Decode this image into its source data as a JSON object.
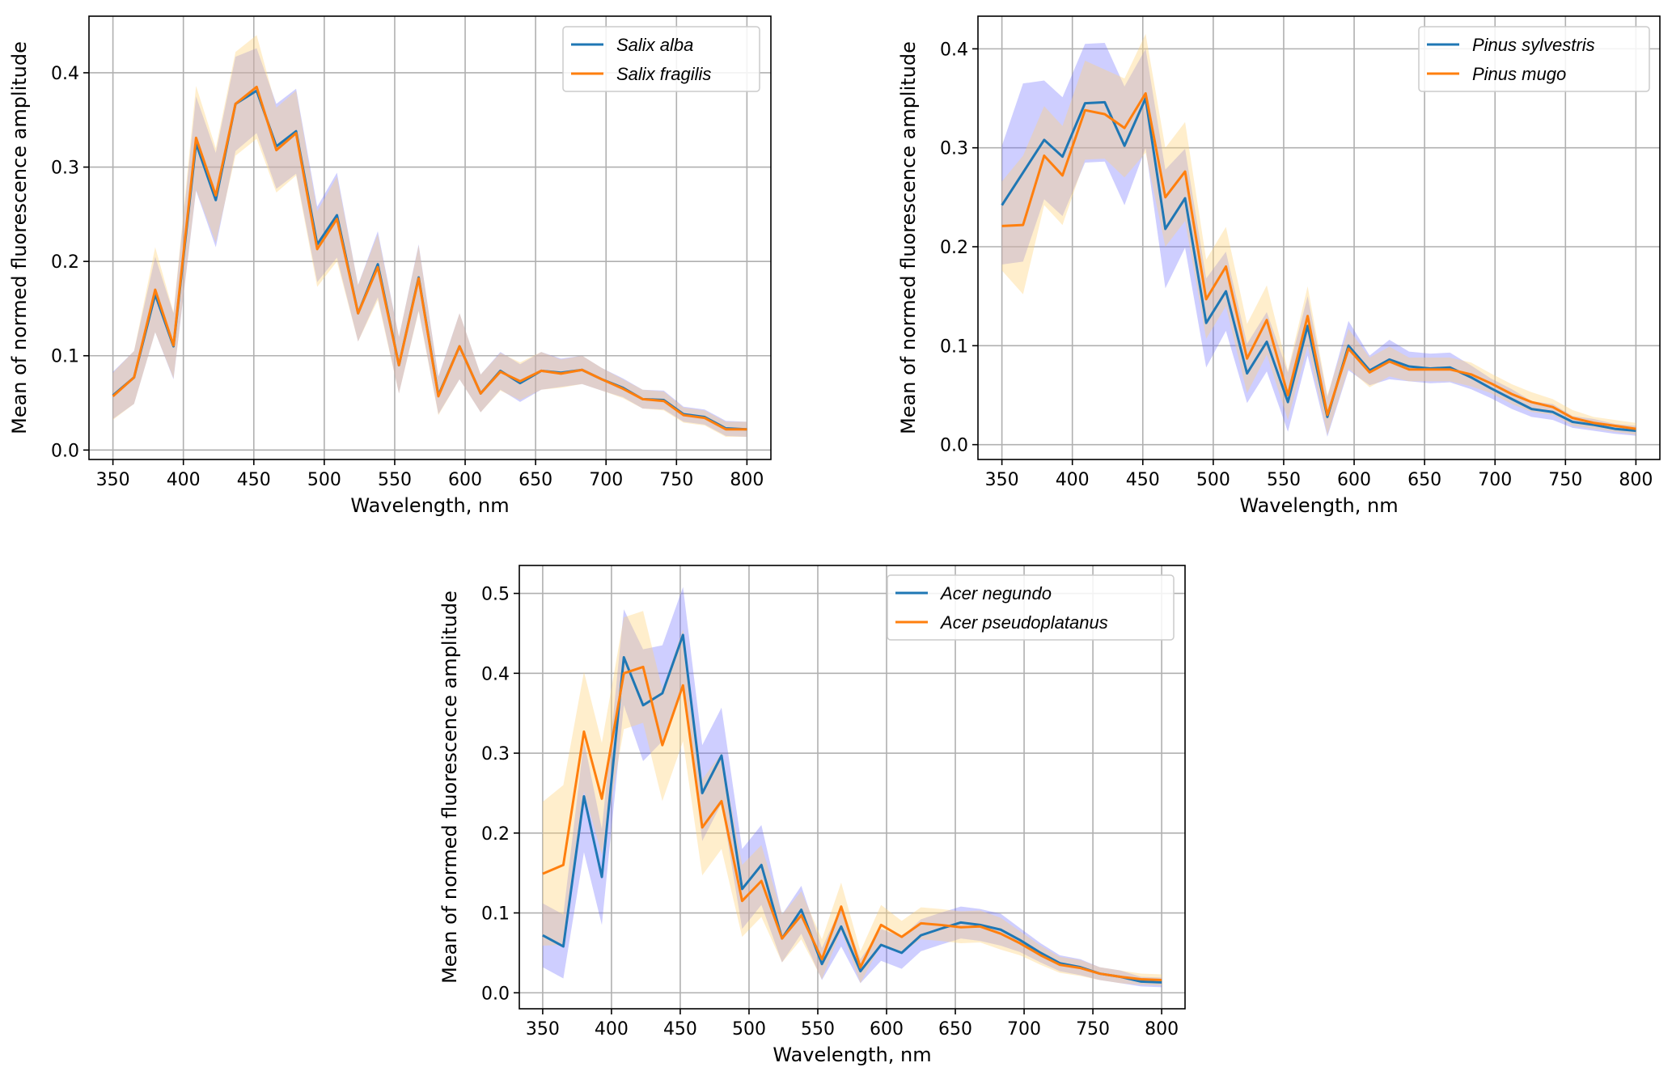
{
  "colors": {
    "series1": "#1f77b4",
    "series2": "#ff7f0e",
    "band1": "#6b6bff",
    "band2": "#ffd27a",
    "grid": "#b0b0b0"
  },
  "chart_data": [
    {
      "type": "line",
      "xlabel": "Wavelength, nm",
      "ylabel": "Mean of normed fluorescence amplitude",
      "xlim": [
        333,
        817
      ],
      "ylim": [
        -0.01,
        0.46
      ],
      "xticks": [
        350,
        400,
        450,
        500,
        550,
        600,
        650,
        700,
        750,
        800
      ],
      "yticks": [
        0.0,
        0.1,
        0.2,
        0.3,
        0.4
      ],
      "ytick_labels": [
        "0.0",
        "0.1",
        "0.2",
        "0.3",
        "0.4"
      ],
      "grid": true,
      "legend_position": "top-right",
      "x": [
        350,
        365,
        380,
        393,
        409,
        423,
        437,
        452,
        466,
        480,
        495,
        509,
        524,
        538,
        553,
        567,
        581,
        596,
        611,
        625,
        639,
        654,
        668,
        683,
        697,
        712,
        726,
        741,
        755,
        770,
        785,
        800
      ],
      "series": [
        {
          "name": "Salix alba",
          "values": [
            0.058,
            0.077,
            0.165,
            0.11,
            0.325,
            0.265,
            0.367,
            0.381,
            0.322,
            0.338,
            0.218,
            0.249,
            0.145,
            0.197,
            0.09,
            0.183,
            0.058,
            0.11,
            0.06,
            0.084,
            0.071,
            0.084,
            0.082,
            0.085,
            0.075,
            0.066,
            0.054,
            0.053,
            0.038,
            0.035,
            0.023,
            0.022
          ],
          "spread": [
            0.025,
            0.028,
            0.04,
            0.035,
            0.05,
            0.05,
            0.05,
            0.045,
            0.045,
            0.045,
            0.04,
            0.045,
            0.03,
            0.035,
            0.03,
            0.035,
            0.02,
            0.035,
            0.02,
            0.02,
            0.02,
            0.02,
            0.015,
            0.015,
            0.012,
            0.01,
            0.01,
            0.01,
            0.008,
            0.008,
            0.008,
            0.008
          ]
        },
        {
          "name": "Salix fragilis",
          "values": [
            0.057,
            0.077,
            0.17,
            0.111,
            0.331,
            0.27,
            0.367,
            0.385,
            0.318,
            0.336,
            0.213,
            0.245,
            0.145,
            0.194,
            0.09,
            0.182,
            0.057,
            0.11,
            0.06,
            0.083,
            0.073,
            0.084,
            0.081,
            0.085,
            0.075,
            0.065,
            0.054,
            0.052,
            0.037,
            0.034,
            0.022,
            0.022
          ],
          "spread": [
            0.025,
            0.028,
            0.045,
            0.035,
            0.055,
            0.05,
            0.055,
            0.055,
            0.045,
            0.045,
            0.04,
            0.045,
            0.03,
            0.035,
            0.03,
            0.035,
            0.02,
            0.035,
            0.02,
            0.02,
            0.02,
            0.02,
            0.015,
            0.015,
            0.012,
            0.01,
            0.01,
            0.01,
            0.008,
            0.008,
            0.008,
            0.008
          ]
        }
      ]
    },
    {
      "type": "line",
      "xlabel": "Wavelength, nm",
      "ylabel": "Mean of normed fluorescence amplitude",
      "xlim": [
        333,
        817
      ],
      "ylim": [
        -0.015,
        0.433
      ],
      "xticks": [
        350,
        400,
        450,
        500,
        550,
        600,
        650,
        700,
        750,
        800
      ],
      "yticks": [
        0.0,
        0.1,
        0.2,
        0.3,
        0.4
      ],
      "ytick_labels": [
        "0.0",
        "0.1",
        "0.2",
        "0.3",
        "0.4"
      ],
      "grid": true,
      "legend_position": "top-right",
      "x": [
        350,
        365,
        380,
        393,
        409,
        423,
        437,
        452,
        466,
        480,
        495,
        509,
        524,
        538,
        553,
        567,
        581,
        596,
        611,
        625,
        639,
        654,
        668,
        683,
        697,
        712,
        726,
        741,
        755,
        770,
        785,
        800
      ],
      "series": [
        {
          "name": "Pinus sylvestris",
          "values": [
            0.242,
            0.275,
            0.308,
            0.291,
            0.345,
            0.346,
            0.302,
            0.35,
            0.218,
            0.249,
            0.123,
            0.155,
            0.072,
            0.104,
            0.043,
            0.12,
            0.028,
            0.1,
            0.075,
            0.086,
            0.079,
            0.077,
            0.078,
            0.068,
            0.057,
            0.046,
            0.036,
            0.033,
            0.023,
            0.02,
            0.016,
            0.014
          ],
          "spread": [
            0.06,
            0.09,
            0.06,
            0.06,
            0.06,
            0.06,
            0.06,
            0.05,
            0.06,
            0.05,
            0.045,
            0.04,
            0.03,
            0.03,
            0.03,
            0.03,
            0.02,
            0.025,
            0.015,
            0.02,
            0.015,
            0.015,
            0.015,
            0.012,
            0.01,
            0.01,
            0.008,
            0.008,
            0.006,
            0.006,
            0.005,
            0.005
          ]
        },
        {
          "name": "Pinus mugo",
          "values": [
            0.221,
            0.222,
            0.292,
            0.272,
            0.338,
            0.334,
            0.32,
            0.355,
            0.25,
            0.276,
            0.147,
            0.18,
            0.087,
            0.126,
            0.05,
            0.13,
            0.03,
            0.097,
            0.073,
            0.084,
            0.076,
            0.076,
            0.076,
            0.071,
            0.062,
            0.051,
            0.043,
            0.038,
            0.027,
            0.022,
            0.019,
            0.016
          ],
          "spread": [
            0.045,
            0.07,
            0.05,
            0.05,
            0.05,
            0.045,
            0.05,
            0.06,
            0.05,
            0.05,
            0.04,
            0.04,
            0.035,
            0.035,
            0.025,
            0.03,
            0.02,
            0.02,
            0.015,
            0.015,
            0.012,
            0.012,
            0.012,
            0.012,
            0.01,
            0.01,
            0.01,
            0.008,
            0.008,
            0.006,
            0.006,
            0.006
          ]
        }
      ]
    },
    {
      "type": "line",
      "xlabel": "Wavelength, nm",
      "ylabel": "Mean of normed fluorescence amplitude",
      "xlim": [
        333,
        817
      ],
      "ylim": [
        -0.02,
        0.535
      ],
      "xticks": [
        350,
        400,
        450,
        500,
        550,
        600,
        650,
        700,
        750,
        800
      ],
      "yticks": [
        0.0,
        0.1,
        0.2,
        0.3,
        0.4,
        0.5
      ],
      "ytick_labels": [
        "0.0",
        "0.1",
        "0.2",
        "0.3",
        "0.4",
        "0.5"
      ],
      "grid": true,
      "legend_position": "top-right",
      "x": [
        350,
        365,
        380,
        393,
        409,
        423,
        437,
        452,
        466,
        480,
        495,
        509,
        524,
        538,
        553,
        567,
        581,
        596,
        611,
        625,
        639,
        654,
        668,
        683,
        697,
        712,
        726,
        741,
        755,
        770,
        785,
        800
      ],
      "series": [
        {
          "name": "Acer negundo",
          "values": [
            0.072,
            0.058,
            0.246,
            0.145,
            0.42,
            0.36,
            0.375,
            0.448,
            0.25,
            0.297,
            0.13,
            0.16,
            0.068,
            0.104,
            0.036,
            0.083,
            0.027,
            0.06,
            0.05,
            0.072,
            0.08,
            0.088,
            0.085,
            0.079,
            0.066,
            0.05,
            0.037,
            0.032,
            0.024,
            0.02,
            0.014,
            0.013
          ],
          "spread": [
            0.04,
            0.04,
            0.07,
            0.06,
            0.06,
            0.07,
            0.06,
            0.06,
            0.06,
            0.06,
            0.05,
            0.05,
            0.03,
            0.03,
            0.02,
            0.025,
            0.015,
            0.02,
            0.02,
            0.02,
            0.02,
            0.02,
            0.02,
            0.02,
            0.015,
            0.012,
            0.01,
            0.01,
            0.008,
            0.008,
            0.006,
            0.006
          ]
        },
        {
          "name": "Acer pseudoplatanus",
          "values": [
            0.149,
            0.16,
            0.327,
            0.243,
            0.4,
            0.408,
            0.31,
            0.385,
            0.207,
            0.24,
            0.115,
            0.14,
            0.068,
            0.097,
            0.042,
            0.108,
            0.032,
            0.085,
            0.07,
            0.087,
            0.085,
            0.082,
            0.083,
            0.074,
            0.062,
            0.047,
            0.035,
            0.031,
            0.024,
            0.02,
            0.017,
            0.016
          ],
          "spread": [
            0.09,
            0.1,
            0.075,
            0.07,
            0.07,
            0.07,
            0.07,
            0.07,
            0.06,
            0.06,
            0.045,
            0.045,
            0.03,
            0.03,
            0.025,
            0.03,
            0.02,
            0.025,
            0.02,
            0.02,
            0.02,
            0.02,
            0.02,
            0.02,
            0.015,
            0.012,
            0.01,
            0.01,
            0.008,
            0.008,
            0.007,
            0.007
          ]
        }
      ]
    }
  ]
}
